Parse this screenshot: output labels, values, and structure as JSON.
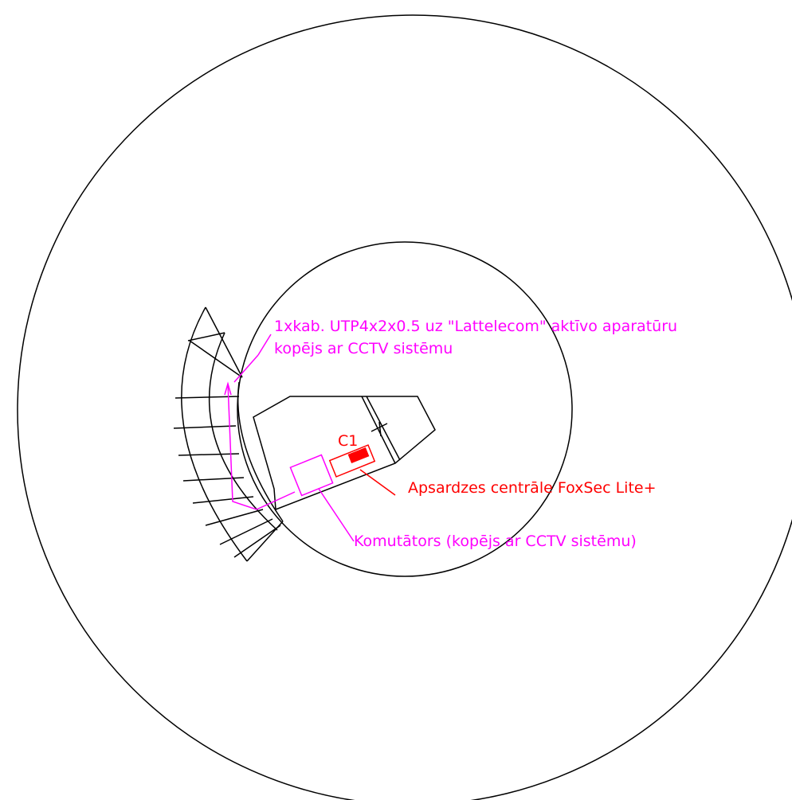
{
  "labels": {
    "cable_line1": "1xkab. UTP4x2x0.5 uz \"Lattelecom\" aktīvo aparatūru",
    "cable_line2": "kopējs ar CCTV sistēmu",
    "c1_tag": "C1",
    "alarm_panel": "Apsardzes centrāle FoxSec Lite+",
    "switch": "Komutātors (kopējs ar CCTV sistēmu)"
  },
  "colors": {
    "outline": "#000000",
    "network": "#ff00ff",
    "security": "#ff0000"
  }
}
